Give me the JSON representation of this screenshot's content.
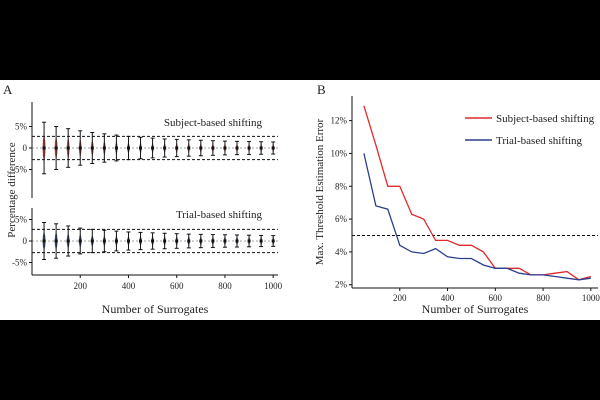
{
  "panel_a": {
    "label": "A",
    "xlabel": "Number of Surrogates",
    "ylabel": "Percentage difference",
    "xticks": [
      "200",
      "400",
      "600",
      "800",
      "1000"
    ],
    "yticks": [
      "5%",
      "0",
      "-5%"
    ],
    "top_title": "Subject-based shifting",
    "bottom_title": "Trial-based shifting",
    "colors": {
      "top": "#d63a3a",
      "bottom": "#2b4a8c",
      "whisker": "#111111"
    }
  },
  "panel_b": {
    "label": "B",
    "xlabel": "Number of Surrogates",
    "ylabel": "Max. Threshold Estimation Error",
    "xticks": [
      "200",
      "400",
      "600",
      "800",
      "1000"
    ],
    "yticks": [
      "12%",
      "10%",
      "8%",
      "6%",
      "4%",
      "2%"
    ],
    "legend": {
      "subject": "Subject-based shifting",
      "trial": "Trial-based shifting"
    }
  },
  "chart_data": [
    {
      "type": "scatter",
      "title": "Subject-based shifting",
      "xlabel": "Number of Surrogates",
      "ylabel": "Percentage difference",
      "x": [
        50,
        100,
        150,
        200,
        250,
        300,
        350,
        400,
        450,
        500,
        550,
        600,
        650,
        700,
        750,
        800,
        850,
        900,
        950,
        1000
      ],
      "spread": [
        6.0,
        5.0,
        4.5,
        4.0,
        3.6,
        3.3,
        3.0,
        2.7,
        2.5,
        2.3,
        2.1,
        2.0,
        1.9,
        1.8,
        1.7,
        1.6,
        1.55,
        1.5,
        1.45,
        1.4
      ],
      "threshold": [
        2.7,
        -2.7
      ],
      "xlim": [
        0,
        1020
      ],
      "ylim": [
        -7,
        7
      ]
    },
    {
      "type": "scatter",
      "title": "Trial-based shifting",
      "xlabel": "Number of Surrogates",
      "ylabel": "Percentage difference",
      "x": [
        50,
        100,
        150,
        200,
        250,
        300,
        350,
        400,
        450,
        500,
        550,
        600,
        650,
        700,
        750,
        800,
        850,
        900,
        950,
        1000
      ],
      "spread": [
        4.3,
        4.0,
        3.5,
        3.0,
        2.7,
        2.5,
        2.3,
        2.1,
        2.0,
        1.9,
        1.8,
        1.7,
        1.6,
        1.55,
        1.5,
        1.45,
        1.4,
        1.35,
        1.3,
        1.25
      ],
      "threshold": [
        2.7,
        -2.7
      ],
      "xlim": [
        0,
        1020
      ],
      "ylim": [
        -7,
        7
      ]
    },
    {
      "type": "line",
      "xlabel": "Number of Surrogates",
      "ylabel": "Max. Threshold Estimation Error",
      "xlim": [
        0,
        1030
      ],
      "ylim": [
        1.8,
        13.5
      ],
      "reference": 5,
      "series": [
        {
          "name": "Subject-based shifting",
          "color": "#e02a2a",
          "x": [
            50,
            100,
            150,
            175,
            200,
            250,
            300,
            350,
            400,
            450,
            500,
            550,
            600,
            650,
            700,
            750,
            800,
            850,
            900,
            950,
            1000
          ],
          "values": [
            12.9,
            10.5,
            8.0,
            8.0,
            8.0,
            6.3,
            6.0,
            4.7,
            4.7,
            4.4,
            4.4,
            4.0,
            3.0,
            3.0,
            3.0,
            2.6,
            2.6,
            2.7,
            2.8,
            2.3,
            2.5
          ]
        },
        {
          "name": "Trial-based shifting",
          "color": "#2b3f8f",
          "x": [
            50,
            100,
            150,
            200,
            250,
            300,
            350,
            400,
            450,
            500,
            550,
            600,
            650,
            700,
            750,
            800,
            850,
            900,
            950,
            1000
          ],
          "values": [
            10.0,
            6.8,
            6.6,
            4.4,
            4.0,
            3.9,
            4.2,
            3.7,
            3.6,
            3.6,
            3.2,
            3.0,
            3.0,
            2.7,
            2.6,
            2.6,
            2.5,
            2.4,
            2.3,
            2.4
          ]
        }
      ]
    }
  ]
}
